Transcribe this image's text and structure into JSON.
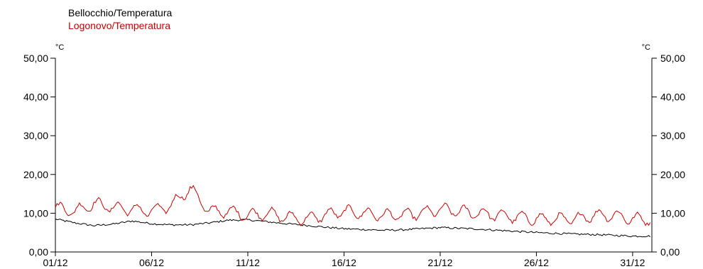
{
  "chart_data": {
    "type": "line",
    "title": "",
    "xlabel": "",
    "ylabel": "°C",
    "ylabel_right": "°C",
    "ylim": [
      0,
      50
    ],
    "yticks": [
      "0,00",
      "10,00",
      "20,00",
      "30,00",
      "40,00",
      "50,00"
    ],
    "xlim": [
      "2023-12-01",
      "2024-01-01"
    ],
    "xticks": [
      "01/12",
      "06/12",
      "11/12",
      "16/12",
      "21/12",
      "26/12",
      "31/12"
    ],
    "grid": false,
    "legend": "top-left",
    "series": [
      {
        "name": "Bellocchio/Temperatura",
        "color": "#000000",
        "x": [
          "01/12",
          "02/12",
          "03/12",
          "04/12",
          "05/12",
          "06/12",
          "07/12",
          "08/12",
          "09/12",
          "10/12",
          "11/12",
          "12/12",
          "13/12",
          "14/12",
          "15/12",
          "16/12",
          "17/12",
          "18/12",
          "19/12",
          "20/12",
          "21/12",
          "22/12",
          "23/12",
          "24/12",
          "25/12",
          "26/12",
          "27/12",
          "28/12",
          "29/12",
          "30/12",
          "31/12"
        ],
        "values": [
          8.5,
          7.5,
          6.8,
          7.2,
          8.0,
          7.3,
          7.0,
          7.0,
          7.5,
          8.2,
          8.3,
          7.8,
          7.3,
          6.9,
          6.4,
          6.0,
          5.8,
          5.6,
          5.7,
          6.0,
          6.3,
          6.1,
          5.9,
          5.6,
          5.3,
          5.0,
          4.8,
          4.6,
          4.5,
          4.3,
          4.1
        ]
      },
      {
        "name": "Logonovo/Temperatura",
        "color": "#cc0000",
        "x": [
          "01/12",
          "02/12",
          "03/12",
          "04/12",
          "05/12",
          "06/12",
          "07/12",
          "08/12",
          "09/12",
          "10/12",
          "11/12",
          "12/12",
          "13/12",
          "14/12",
          "15/12",
          "16/12",
          "17/12",
          "18/12",
          "19/12",
          "20/12",
          "21/12",
          "22/12",
          "23/12",
          "24/12",
          "25/12",
          "26/12",
          "27/12",
          "28/12",
          "29/12",
          "30/12",
          "31/12"
        ],
        "values": [
          11.5,
          10.5,
          12.5,
          11.5,
          11.0,
          10.5,
          12.0,
          16.5,
          10.5,
          10.5,
          9.5,
          10.0,
          9.0,
          8.5,
          9.5,
          10.5,
          10.0,
          9.5,
          9.5,
          10.0,
          11.0,
          10.5,
          10.0,
          9.5,
          9.0,
          8.5,
          8.5,
          8.5,
          9.5,
          9.5,
          8.5
        ]
      }
    ]
  }
}
